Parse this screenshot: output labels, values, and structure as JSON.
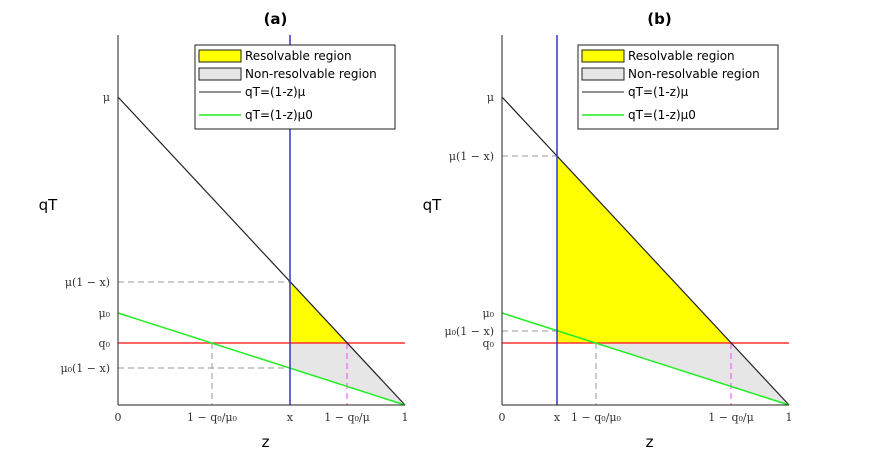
{
  "panels": [
    {
      "title": "(a)",
      "x_label": "z",
      "y_label": "qT",
      "legend": [
        "Resolvable region",
        "Non-resolvable region",
        "qT=(1-z)μ",
        "qT=(1-z)μ0"
      ],
      "yticks": [
        "μ",
        "μ(1 − x)",
        "μ₀",
        "q₀",
        "μ₀(1 − x)"
      ],
      "xticks": [
        "0",
        "1 − q₀/μ₀",
        "x",
        "1 − q₀/μ",
        "1"
      ]
    },
    {
      "title": "(b)",
      "x_label": "z",
      "y_label": "qT",
      "legend": [
        "Resolvable region",
        "Non-resolvable region",
        "qT=(1-z)μ",
        "qT=(1-z)μ0"
      ],
      "yticks": [
        "μ",
        "μ(1 − x)",
        "μ₀",
        "μ₀(1 − x)",
        "q₀"
      ],
      "xticks": [
        "0",
        "x",
        "1 − q₀/μ₀",
        "1 − q₀/μ",
        "1"
      ]
    }
  ]
}
